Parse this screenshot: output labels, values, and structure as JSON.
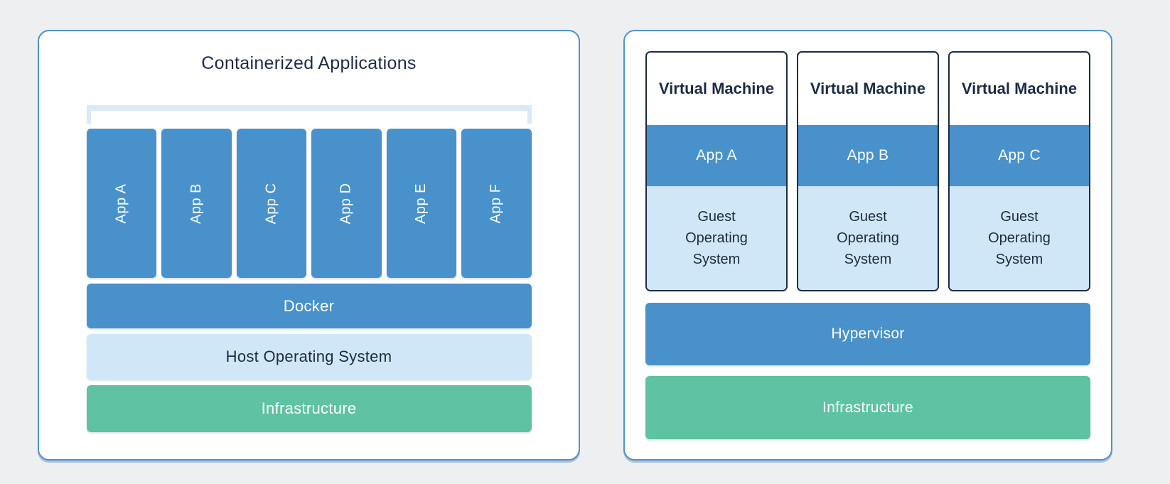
{
  "colors": {
    "blue": "#4991CB",
    "light_blue": "#D0E7F7",
    "green": "#5FC2A2",
    "navy": "#1E2B45",
    "panel_border": "#4E92CC",
    "bracket": "#D9E9F6",
    "page_bg": "#EDEFF1"
  },
  "left_panel": {
    "title": "Containerized Applications",
    "apps": [
      "App A",
      "App B",
      "App C",
      "App D",
      "App E",
      "App F"
    ],
    "layers": {
      "docker": "Docker",
      "host_os": "Host Operating System",
      "infrastructure": "Infrastructure"
    }
  },
  "right_panel": {
    "vms": [
      {
        "title": "Virtual Machine",
        "app": "App A",
        "os": "Guest Operating System"
      },
      {
        "title": "Virtual Machine",
        "app": "App B",
        "os": "Guest Operating System"
      },
      {
        "title": "Virtual Machine",
        "app": "App C",
        "os": "Guest Operating System"
      }
    ],
    "layers": {
      "hypervisor": "Hypervisor",
      "infrastructure": "Infrastructure"
    }
  }
}
